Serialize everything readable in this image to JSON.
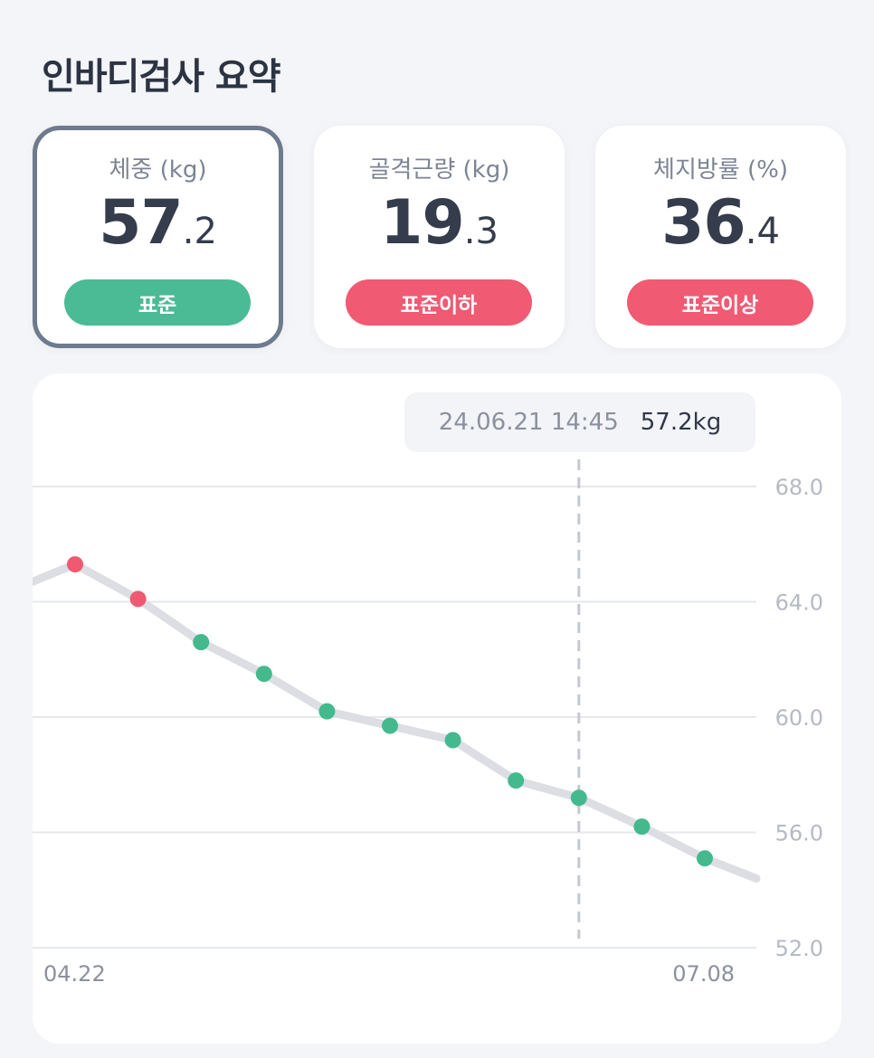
{
  "page": {
    "title": "인바디검사 요약"
  },
  "summary_cards": [
    {
      "label": "체중 (kg)",
      "value_int": "57",
      "value_dec": ".2",
      "status": "표준",
      "status_color": "#4bbb95",
      "selected": true
    },
    {
      "label": "골격근량 (kg)",
      "value_int": "19",
      "value_dec": ".3",
      "status": "표준이하",
      "status_color": "#f05a72",
      "selected": false
    },
    {
      "label": "체지방률 (%)",
      "value_int": "36",
      "value_dec": ".4",
      "status": "표준이상",
      "status_color": "#f05a72",
      "selected": false
    }
  ],
  "tooltip": {
    "datetime": "24.06.21 14:45",
    "value": "57.2kg"
  },
  "chart_data": {
    "type": "line",
    "series": [
      {
        "values": [
          64.7,
          65.3,
          64.1,
          62.6,
          61.5,
          60.2,
          59.7,
          59.2,
          57.8,
          57.2,
          56.2,
          55.1,
          54.4
        ],
        "points": [
          {
            "y": 65.3,
            "status": "high"
          },
          {
            "y": 64.1,
            "status": "high"
          },
          {
            "y": 62.6,
            "status": "normal"
          },
          {
            "y": 61.5,
            "status": "normal"
          },
          {
            "y": 60.2,
            "status": "normal"
          },
          {
            "y": 59.7,
            "status": "normal"
          },
          {
            "y": 59.2,
            "status": "normal"
          },
          {
            "y": 57.8,
            "status": "normal"
          },
          {
            "y": 57.2,
            "status": "normal"
          },
          {
            "y": 56.2,
            "status": "normal"
          },
          {
            "y": 55.1,
            "status": "normal"
          }
        ]
      }
    ],
    "ylim": [
      52.0,
      68.0
    ],
    "yticks": [
      "68.0",
      "64.0",
      "60.0",
      "56.0",
      "52.0"
    ],
    "x_labels": {
      "start": "04.22",
      "end": "07.08"
    },
    "selected_point_index": 8,
    "grid": true,
    "colors": {
      "line": "#dcdee3",
      "high": "#ee5a72",
      "normal": "#44b98e",
      "grid": "#e6e8ec",
      "marker": "#c4c8d0",
      "tick": "#b5bac4"
    }
  }
}
